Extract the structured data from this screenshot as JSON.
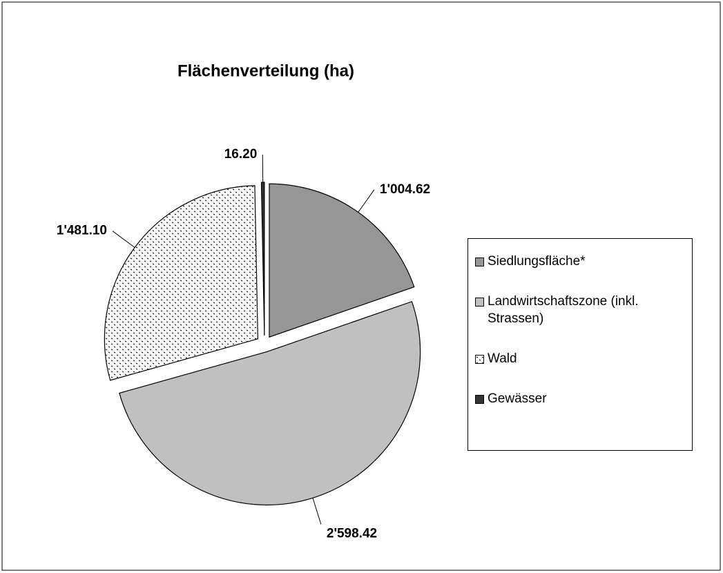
{
  "chart_data": {
    "type": "pie",
    "title": "Flächenverteilung (ha)",
    "categories": [
      "Siedlungsfläche*",
      "Landwirtschaftszone (inkl. Strassen)",
      "Wald",
      "Gewässer"
    ],
    "values": [
      1004.62,
      2598.42,
      1481.1,
      16.2
    ],
    "value_labels": [
      "1'004.62",
      "2'598.42",
      "1'481.10",
      "16.20"
    ],
    "colors": [
      "#969696",
      "#c0c0c0",
      "#ffffff",
      "#333333"
    ],
    "patterns": [
      null,
      null,
      "dots",
      null
    ],
    "legend": "right"
  }
}
